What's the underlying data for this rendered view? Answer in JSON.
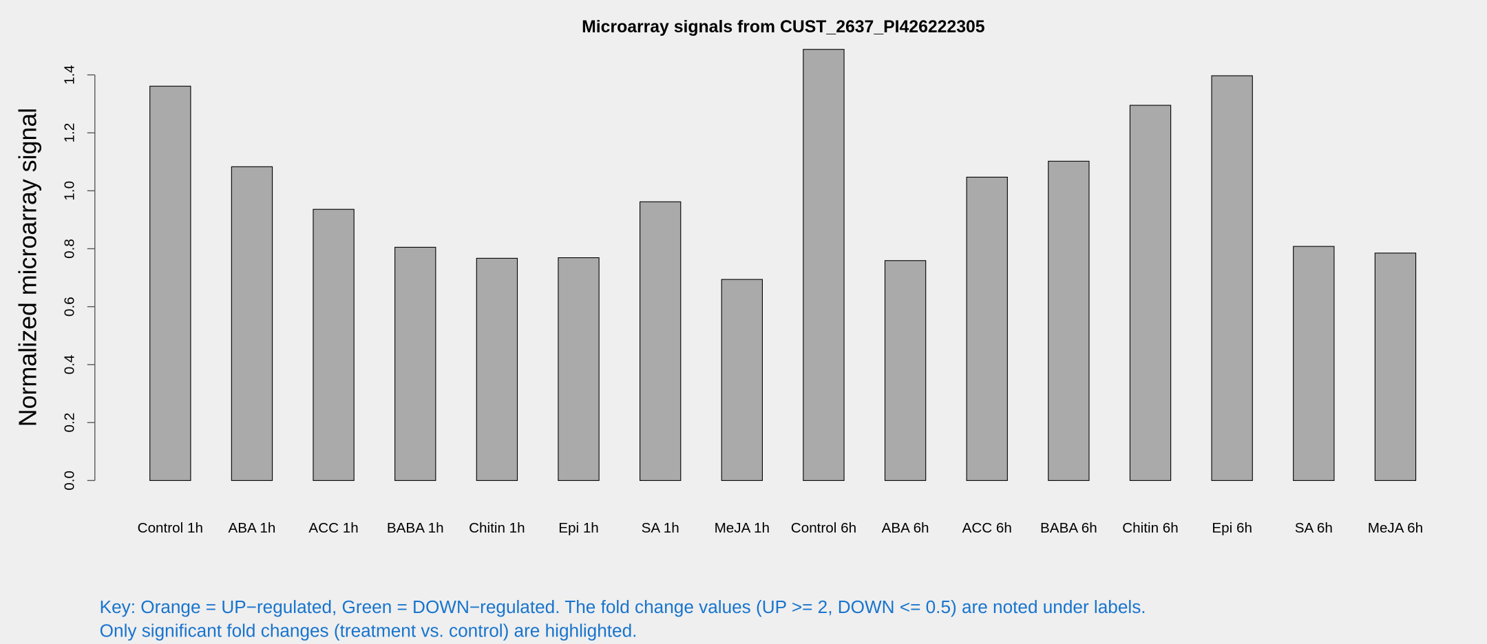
{
  "chart_data": {
    "type": "bar",
    "title": "Microarray signals from CUST_2637_PI426222305",
    "xlabel": "",
    "ylabel": "Normalized microarray signal",
    "ylim": [
      0,
      1.4
    ],
    "yticks": [
      "0.0",
      "0.2",
      "0.4",
      "0.6",
      "0.8",
      "1.0",
      "1.2",
      "1.4"
    ],
    "grid": false,
    "categories": [
      "Control 1h",
      "ABA 1h",
      "ACC 1h",
      "BABA 1h",
      "Chitin 1h",
      "Epi 1h",
      "SA 1h",
      "MeJA 1h",
      "Control 6h",
      "ABA 6h",
      "ACC 6h",
      "BABA 6h",
      "Chitin 6h",
      "Epi 6h",
      "SA 6h",
      "MeJA 6h"
    ],
    "values": [
      1.361,
      1.083,
      0.936,
      0.805,
      0.767,
      0.769,
      0.962,
      0.694,
      1.488,
      0.759,
      1.047,
      1.102,
      1.295,
      1.397,
      0.808,
      0.785
    ],
    "bar_color": "#aaaaaa",
    "key_color": "#1874cd"
  },
  "key": {
    "line1": "Key: Orange = UP−regulated, Green = DOWN−regulated. The fold change values (UP >= 2, DOWN <= 0.5) are noted under labels.",
    "line2": "Only significant fold changes (treatment vs. control) are highlighted."
  }
}
